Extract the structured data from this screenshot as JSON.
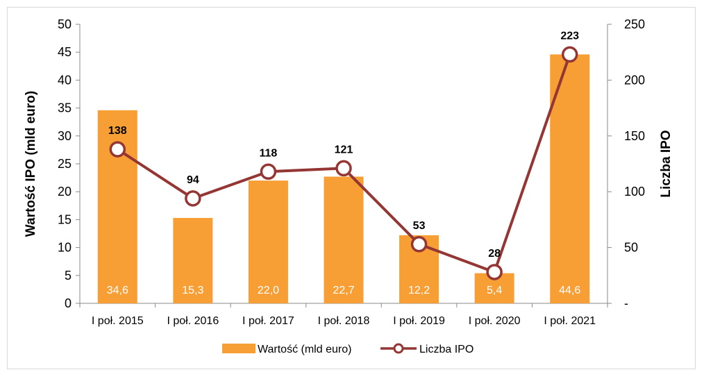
{
  "chart_data": {
    "type": "bar+line",
    "categories": [
      "I poł. 2015",
      "I poł. 2016",
      "I poł. 2017",
      "I poł. 2018",
      "I poł. 2019",
      "I poł. 2020",
      "I poł. 2021"
    ],
    "series": [
      {
        "name": "Wartość (mld euro)",
        "type": "bar",
        "axis": "left",
        "values": [
          34.6,
          15.3,
          22.0,
          22.7,
          12.2,
          5.4,
          44.6
        ],
        "labels": [
          "34,6",
          "15,3",
          "22,0",
          "22,7",
          "12,2",
          "5,4",
          "44,6"
        ],
        "color": "#f79f35"
      },
      {
        "name": "Liczba IPO",
        "type": "line",
        "axis": "right",
        "values": [
          138,
          94,
          118,
          121,
          53,
          28,
          223
        ],
        "labels": [
          "138",
          "94",
          "118",
          "121",
          "53",
          "28",
          "223"
        ],
        "color": "#943634"
      }
    ],
    "ylabel": "Wartość IPO (mld euro)",
    "y2label": "Liczba IPO",
    "ylim": [
      0,
      50
    ],
    "y2lim": [
      0,
      250
    ],
    "yticks": [
      "0",
      "5",
      "10",
      "15",
      "20",
      "25",
      "30",
      "35",
      "40",
      "45",
      "50"
    ],
    "y2ticks": [
      "-",
      "50",
      "100",
      "150",
      "200",
      "250"
    ],
    "grid": false,
    "legend_position": "bottom"
  }
}
